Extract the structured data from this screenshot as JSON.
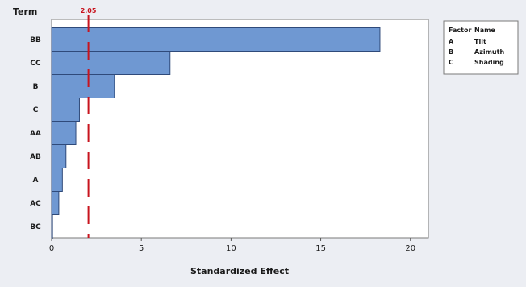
{
  "chart_data": {
    "type": "bar",
    "orientation": "horizontal",
    "title": "",
    "ylabel": "Term",
    "xlabel": "Standardized Effect",
    "categories": [
      "BB",
      "CC",
      "B",
      "C",
      "AA",
      "AB",
      "A",
      "AC",
      "BC"
    ],
    "values": [
      18.3,
      6.6,
      3.5,
      1.55,
      1.35,
      0.8,
      0.6,
      0.4,
      0.05
    ],
    "xlim": [
      0,
      21
    ],
    "xticks": [
      "0",
      "5",
      "10",
      "15",
      "20"
    ],
    "reference_line": {
      "value": 2.05,
      "label": "2.05",
      "color": "#c8141e"
    },
    "bar_color": "#6f98d2",
    "legend": {
      "position": "right",
      "headers": [
        "Factor",
        "Name"
      ],
      "rows": [
        {
          "factor": "A",
          "name": "Tilt"
        },
        {
          "factor": "B",
          "name": "Azimuth"
        },
        {
          "factor": "C",
          "name": "Shading"
        }
      ]
    }
  }
}
